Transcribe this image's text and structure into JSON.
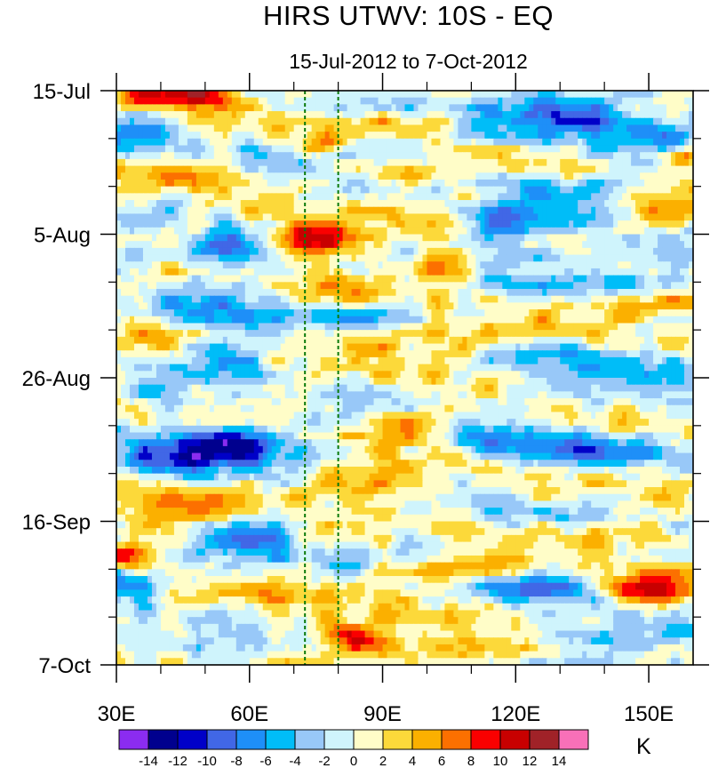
{
  "chart_data": {
    "type": "heatmap",
    "title": "HIRS UTWV: 10S - EQ",
    "subtitle": "15-Jul-2012 to 7-Oct-2012",
    "xlabel": "",
    "ylabel": "",
    "x_range": [
      30,
      160
    ],
    "y_range_days": [
      "15-Jul",
      "7-Oct"
    ],
    "x_ticks": [
      {
        "label": "30E",
        "value": 30
      },
      {
        "label": "60E",
        "value": 60
      },
      {
        "label": "90E",
        "value": 90
      },
      {
        "label": "120E",
        "value": 120
      },
      {
        "label": "150E",
        "value": 150
      }
    ],
    "y_ticks": [
      {
        "label": "15-Jul",
        "day": 0
      },
      {
        "label": "5-Aug",
        "day": 21
      },
      {
        "label": "26-Aug",
        "day": 42
      },
      {
        "label": "16-Sep",
        "day": 63
      },
      {
        "label": "7-Oct",
        "day": 84
      }
    ],
    "reference_lines_lon": [
      72.5,
      80
    ],
    "colorbar": {
      "unit": "K",
      "levels": [
        -14,
        -12,
        -10,
        -8,
        -6,
        -4,
        -2,
        0,
        2,
        4,
        6,
        8,
        10,
        12,
        14
      ],
      "labels": [
        "-14",
        "-12",
        "-10",
        "-8",
        "-6",
        "-4",
        "-2",
        "0",
        "2",
        "4",
        "6",
        "8",
        "10",
        "12",
        "14"
      ],
      "colors": [
        "#8b2cf0",
        "#00008e",
        "#0000c8",
        "#4167e6",
        "#1e8ff8",
        "#00bdf8",
        "#98c8f8",
        "#cff4fc",
        "#fffdc8",
        "#fcd93a",
        "#fbb000",
        "#fc7000",
        "#fa0000",
        "#c80000",
        "#a02228",
        "#f870b8"
      ]
    },
    "anomalies": [
      {
        "lon": 46,
        "day": 1,
        "value": 10,
        "sx": 6,
        "sy": 1.2
      },
      {
        "lon": 34,
        "day": 1,
        "value": 6,
        "sx": 4,
        "sy": 1
      },
      {
        "lon": 36,
        "day": 6,
        "value": -6,
        "sx": 7,
        "sy": 2
      },
      {
        "lon": 75,
        "day": 8,
        "value": 7,
        "sx": 4,
        "sy": 1.2
      },
      {
        "lon": 95,
        "day": 5,
        "value": 4,
        "sx": 12,
        "sy": 1.5
      },
      {
        "lon": 128,
        "day": 3,
        "value": -8,
        "sx": 10,
        "sy": 1.8
      },
      {
        "lon": 150,
        "day": 6,
        "value": -5,
        "sx": 8,
        "sy": 2
      },
      {
        "lon": 158,
        "day": 10,
        "value": 8,
        "sx": 3,
        "sy": 1
      },
      {
        "lon": 40,
        "day": 12,
        "value": 5,
        "sx": 12,
        "sy": 2
      },
      {
        "lon": 97,
        "day": 12,
        "value": 8,
        "sx": 7,
        "sy": 1.2
      },
      {
        "lon": 135,
        "day": 14,
        "value": -6,
        "sx": 10,
        "sy": 1.2
      },
      {
        "lon": 120,
        "day": 19,
        "value": -8,
        "sx": 9,
        "sy": 2
      },
      {
        "lon": 155,
        "day": 18,
        "value": 6,
        "sx": 6,
        "sy": 1.5
      },
      {
        "lon": 55,
        "day": 23,
        "value": -10,
        "sx": 6,
        "sy": 1.5
      },
      {
        "lon": 33,
        "day": 24,
        "value": -8,
        "sx": 3,
        "sy": 1.2
      },
      {
        "lon": 76,
        "day": 22,
        "value": 12,
        "sx": 7,
        "sy": 1.8
      },
      {
        "lon": 103,
        "day": 26,
        "value": 8,
        "sx": 6,
        "sy": 1.3
      },
      {
        "lon": 80,
        "day": 29,
        "value": 6,
        "sx": 8,
        "sy": 1.5
      },
      {
        "lon": 140,
        "day": 28,
        "value": -4,
        "sx": 10,
        "sy": 2
      },
      {
        "lon": 150,
        "day": 31,
        "value": 7,
        "sx": 10,
        "sy": 1.2
      },
      {
        "lon": 50,
        "day": 33,
        "value": -5,
        "sx": 10,
        "sy": 1.5
      },
      {
        "lon": 85,
        "day": 33,
        "value": -6,
        "sx": 8,
        "sy": 1.2
      },
      {
        "lon": 36,
        "day": 37,
        "value": 5,
        "sx": 6,
        "sy": 2
      },
      {
        "lon": 55,
        "day": 39,
        "value": -7,
        "sx": 10,
        "sy": 2
      },
      {
        "lon": 105,
        "day": 37,
        "value": 4,
        "sx": 16,
        "sy": 2
      },
      {
        "lon": 135,
        "day": 39,
        "value": -5,
        "sx": 14,
        "sy": 1.8
      },
      {
        "lon": 40,
        "day": 45,
        "value": -3,
        "sx": 12,
        "sy": 2
      },
      {
        "lon": 97,
        "day": 49,
        "value": 8,
        "sx": 8,
        "sy": 2
      },
      {
        "lon": 58,
        "day": 52,
        "value": -12,
        "sx": 8,
        "sy": 2
      },
      {
        "lon": 43,
        "day": 54,
        "value": -8,
        "sx": 7,
        "sy": 2
      },
      {
        "lon": 85,
        "day": 57,
        "value": 6,
        "sx": 8,
        "sy": 2
      },
      {
        "lon": 138,
        "day": 53,
        "value": -8,
        "sx": 10,
        "sy": 1.5
      },
      {
        "lon": 115,
        "day": 51,
        "value": -5,
        "sx": 10,
        "sy": 2
      },
      {
        "lon": 40,
        "day": 62,
        "value": 6,
        "sx": 6,
        "sy": 2
      },
      {
        "lon": 60,
        "day": 65,
        "value": -6,
        "sx": 8,
        "sy": 2
      },
      {
        "lon": 140,
        "day": 65,
        "value": 6,
        "sx": 14,
        "sy": 1.5
      },
      {
        "lon": 105,
        "day": 70,
        "value": 8,
        "sx": 12,
        "sy": 1.3
      },
      {
        "lon": 32,
        "day": 68,
        "value": 8,
        "sx": 3,
        "sy": 1
      },
      {
        "lon": 125,
        "day": 73,
        "value": -8,
        "sx": 8,
        "sy": 1.5
      },
      {
        "lon": 150,
        "day": 73,
        "value": 10,
        "sx": 6,
        "sy": 1.5
      },
      {
        "lon": 55,
        "day": 74,
        "value": 5,
        "sx": 14,
        "sy": 1.5
      },
      {
        "lon": 35,
        "day": 72,
        "value": -5,
        "sx": 5,
        "sy": 1.5
      },
      {
        "lon": 84,
        "day": 80,
        "value": 10,
        "sx": 6,
        "sy": 1.5
      },
      {
        "lon": 55,
        "day": 81,
        "value": -5,
        "sx": 10,
        "sy": 1.8
      },
      {
        "lon": 140,
        "day": 80,
        "value": -6,
        "sx": 12,
        "sy": 1.5
      },
      {
        "lon": 110,
        "day": 82,
        "value": 5,
        "sx": 12,
        "sy": 1.5
      }
    ]
  }
}
